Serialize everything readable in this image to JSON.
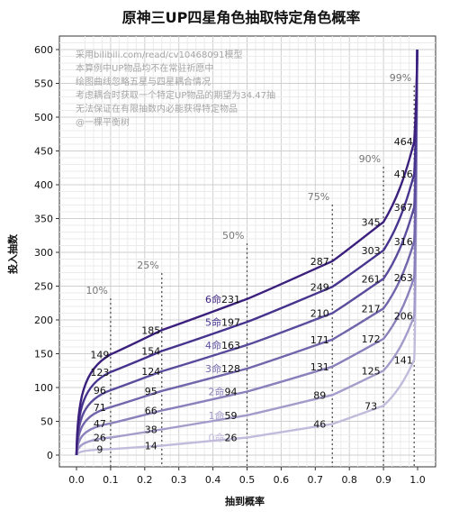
{
  "chart_data": {
    "type": "line",
    "title": "原神三UP四星角色抽取特定角色概率",
    "xlabel": "抽到概率",
    "ylabel": "投入抽数",
    "xlim": [
      0,
      1.0
    ],
    "ylim": [
      0,
      600
    ],
    "x_ticks": [
      "0.0",
      "0.1",
      "0.2",
      "0.3",
      "0.4",
      "0.5",
      "0.6",
      "0.7",
      "0.8",
      "0.9",
      "1.0"
    ],
    "y_ticks": [
      "0",
      "50",
      "100",
      "150",
      "200",
      "250",
      "300",
      "350",
      "400",
      "450",
      "500",
      "550",
      "600"
    ],
    "grid": true,
    "notes": [
      "采用bilibili.com/read/cv10468091模型",
      "本算例中UP物品均不在常驻祈愿中",
      "绘图曲线忽略五星与四星耦合情况",
      "考虑耦合时获取一个特定UP物品的期望为34.47抽",
      "无法保证在有限抽数内必能获得特定物品",
      "@一棵平衡树"
    ],
    "percentiles": [
      {
        "label": "10%",
        "x": 0.1
      },
      {
        "label": "25%",
        "x": 0.25
      },
      {
        "label": "50%",
        "x": 0.5
      },
      {
        "label": "75%",
        "x": 0.75
      },
      {
        "label": "90%",
        "x": 0.9
      },
      {
        "label": "99%",
        "x": 0.99
      }
    ],
    "series": [
      {
        "name": "0命",
        "color": "#c2bbdb",
        "values": [
          9,
          14,
          26,
          46,
          73,
          141,
          600
        ]
      },
      {
        "name": "1命",
        "color": "#a39bca",
        "values": [
          26,
          38,
          59,
          89,
          125,
          206,
          600
        ]
      },
      {
        "name": "2命",
        "color": "#8a80bb",
        "values": [
          47,
          66,
          94,
          131,
          172,
          263,
          600
        ]
      },
      {
        "name": "3命",
        "color": "#7265ab",
        "values": [
          71,
          95,
          128,
          171,
          217,
          316,
          600
        ]
      },
      {
        "name": "4命",
        "color": "#5b4b9d",
        "values": [
          96,
          124,
          163,
          210,
          261,
          367,
          600
        ]
      },
      {
        "name": "5命",
        "color": "#46338e",
        "values": [
          123,
          154,
          197,
          249,
          303,
          416,
          600
        ]
      },
      {
        "name": "6命",
        "color": "#3a1f7d",
        "values": [
          149,
          185,
          231,
          287,
          345,
          464,
          600
        ]
      }
    ],
    "series_label_positions": [
      0.1,
      0.25,
      0.5,
      0.75,
      0.9,
      0.99
    ],
    "constellation_labels": [
      "0命 26",
      "1命 59",
      "2命 94",
      "3命 128",
      "4命 163",
      "5命 197",
      "6命 231"
    ]
  }
}
